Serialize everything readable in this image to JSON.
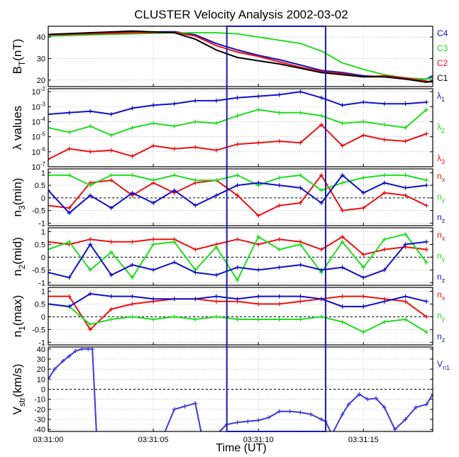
{
  "title": "CLUSTER Velocity Analysis  2002-03-02",
  "xlabel": "Time (UT)",
  "x_ticks": [
    "03:31:00",
    "03:31:05",
    "03:31:10",
    "03:31:15"
  ],
  "x_range": [
    0,
    18.3
  ],
  "highlight_box": {
    "x_start": 8.5,
    "x_end": 13.2,
    "color": "#1a1aa8"
  },
  "chart_data": [
    {
      "type": "line",
      "ylabel": "B",
      "ylabel_sub": "T",
      "ylabel_suffix": "(nT)",
      "ylim": [
        17,
        45
      ],
      "y_ticks": [
        {
          "v": 20,
          "label": "20"
        },
        {
          "v": 30,
          "label": "30"
        },
        {
          "v": 40,
          "label": "40"
        }
      ],
      "series": [
        {
          "name": "C4",
          "color": "#1010c8",
          "markers": false,
          "x": [
            0,
            2,
            4,
            6,
            7,
            8,
            9,
            10,
            11,
            12,
            13,
            14,
            15,
            16,
            17,
            18,
            18.3
          ],
          "values": [
            41,
            41.5,
            42.2,
            42.5,
            41,
            37,
            34,
            31.5,
            29.5,
            27,
            24.5,
            23.5,
            22,
            21.5,
            20.5,
            20.5,
            22
          ]
        },
        {
          "name": "C3",
          "color": "#20dd20",
          "markers": false,
          "x": [
            0,
            2,
            4,
            6,
            7,
            8,
            9,
            10,
            11,
            12,
            13,
            14,
            15,
            16,
            17,
            18,
            18.3
          ],
          "values": [
            40.5,
            41,
            41.5,
            42,
            42,
            42,
            41.5,
            40,
            38.5,
            37,
            33.5,
            28,
            25,
            22.5,
            21,
            20.5,
            21
          ]
        },
        {
          "name": "C2",
          "color": "#ee1010",
          "markers": false,
          "x": [
            0,
            2,
            4,
            6,
            7,
            8,
            9,
            10,
            11,
            12,
            13,
            14,
            15,
            16,
            17,
            18,
            18.3
          ],
          "values": [
            41,
            41.5,
            42,
            42.2,
            40.5,
            36,
            33,
            31,
            28.5,
            26,
            24,
            23,
            21.5,
            22,
            21,
            19.5,
            19
          ]
        },
        {
          "name": "C1",
          "color": "#000000",
          "markers": false,
          "x": [
            0,
            2,
            4,
            6,
            7,
            8,
            9,
            10,
            11,
            12,
            13,
            14,
            15,
            16,
            17,
            18,
            18.3
          ],
          "values": [
            41.2,
            42,
            42.8,
            42,
            39,
            34,
            30.5,
            29,
            27.5,
            25.5,
            23.5,
            22.5,
            21.5,
            21.5,
            20.5,
            19,
            19.5
          ]
        }
      ],
      "legend": [
        {
          "text": "C4",
          "color": "#1010c8"
        },
        {
          "text": "C3",
          "color": "#20dd20"
        },
        {
          "text": "C2",
          "color": "#ee1010"
        },
        {
          "text": "C1",
          "color": "#000000"
        }
      ]
    },
    {
      "type": "line",
      "ylabel": "λ values",
      "log": true,
      "ylim": [
        -7,
        -1.8
      ],
      "y_ticks": [
        {
          "v": -2,
          "label": "10",
          "exp": "-2"
        },
        {
          "v": -3,
          "label": "10",
          "exp": "-3"
        },
        {
          "v": -4,
          "label": "10",
          "exp": "-4"
        },
        {
          "v": -5,
          "label": "10",
          "exp": "-5"
        },
        {
          "v": -6,
          "label": "10",
          "exp": "-6"
        },
        {
          "v": -7,
          "label": "10",
          "exp": "-7"
        }
      ],
      "series": [
        {
          "name": "λ1",
          "color": "#1010c8",
          "markers": true,
          "x": [
            0,
            1,
            2,
            3,
            4,
            5,
            6,
            7,
            8,
            9,
            10,
            11,
            12,
            13,
            14,
            15,
            16,
            17,
            18
          ],
          "values": [
            -3.5,
            -3.4,
            -3.3,
            -3.5,
            -3.1,
            -2.9,
            -2.8,
            -2.6,
            -2.6,
            -2.4,
            -2.3,
            -2.2,
            -2.0,
            -2.4,
            -2.9,
            -2.7,
            -2.8,
            -2.8,
            -2.7
          ]
        },
        {
          "name": "λ2",
          "color": "#20dd20",
          "markers": true,
          "x": [
            0,
            1,
            2,
            3,
            4,
            5,
            6,
            7,
            8,
            9,
            10,
            11,
            12,
            13,
            14,
            15,
            16,
            17,
            18
          ],
          "values": [
            -4.4,
            -4.7,
            -4.3,
            -4.9,
            -4.4,
            -4.1,
            -4.3,
            -4.0,
            -4.1,
            -3.6,
            -3.2,
            -3.4,
            -3.4,
            -3.6,
            -4.1,
            -4.0,
            -4.2,
            -4.4,
            -3.2
          ]
        },
        {
          "name": "λ3",
          "color": "#ee1010",
          "markers": true,
          "x": [
            0,
            1,
            2,
            3,
            4,
            5,
            6,
            7,
            8,
            9,
            10,
            11,
            12,
            13,
            14,
            15,
            16,
            17,
            18
          ],
          "values": [
            -6.5,
            -5.8,
            -6.0,
            -5.9,
            -6.3,
            -5.6,
            -5.8,
            -5.7,
            -5.9,
            -5.5,
            -5.4,
            -5.3,
            -5.4,
            -4.2,
            -5.6,
            -4.9,
            -5.2,
            -5.3,
            -4.8
          ]
        }
      ],
      "legend": [
        {
          "text": "λ",
          "sub": "1",
          "color": "#1010c8"
        },
        {
          "text": "λ",
          "sub": "2",
          "color": "#20dd20"
        },
        {
          "text": "λ",
          "sub": "3",
          "color": "#ee1010"
        }
      ]
    },
    {
      "type": "line",
      "ylabel": "n",
      "ylabel_sub": "3",
      "ylabel_suffix": "(min)",
      "ylim": [
        -1.1,
        1.15
      ],
      "zero_line": true,
      "y_ticks": [
        {
          "v": 1,
          "label": "1"
        },
        {
          "v": 0.5,
          "label": "0.5"
        },
        {
          "v": 0,
          "label": "0"
        },
        {
          "v": -0.5,
          "label": "-0.5"
        },
        {
          "v": -1,
          "label": "-1"
        }
      ],
      "series": [
        {
          "name": "nx",
          "color": "#ee1010",
          "markers": true,
          "x": [
            0,
            1,
            2,
            3,
            4,
            5,
            6,
            7,
            8,
            9,
            10,
            11,
            12,
            13,
            14,
            15,
            16,
            17,
            18
          ],
          "values": [
            -0.3,
            -0.4,
            0.6,
            0.7,
            0.1,
            0.6,
            0.2,
            0.6,
            0.7,
            0.1,
            -0.7,
            -0.3,
            -0.2,
            0.9,
            -0.5,
            -0.4,
            0.2,
            0.1,
            -0.3
          ]
        },
        {
          "name": "ny",
          "color": "#20dd20",
          "markers": true,
          "x": [
            0,
            1,
            2,
            3,
            4,
            5,
            6,
            7,
            8,
            9,
            10,
            11,
            12,
            13,
            14,
            15,
            16,
            17,
            18
          ],
          "values": [
            0.9,
            0.9,
            0.5,
            0.9,
            0.9,
            0.7,
            0.9,
            0.7,
            0.7,
            0.9,
            0.5,
            0.8,
            0.9,
            0.3,
            0.6,
            0.8,
            0.9,
            0.9,
            0.7
          ]
        },
        {
          "name": "nz",
          "color": "#1010c8",
          "markers": true,
          "x": [
            0,
            1,
            2,
            3,
            4,
            5,
            6,
            7,
            8,
            9,
            10,
            11,
            12,
            13,
            14,
            15,
            16,
            17,
            18
          ],
          "values": [
            0.3,
            -0.6,
            0.1,
            -0.4,
            0.2,
            -0.2,
            0.3,
            -0.3,
            0.1,
            0.5,
            0.6,
            0.5,
            0.4,
            -0.2,
            0.9,
            0.2,
            0.6,
            0.4,
            0.5
          ]
        }
      ],
      "legend": [
        {
          "text": "n",
          "sub": "x",
          "color": "#ee1010"
        },
        {
          "text": "n",
          "sub": "y",
          "color": "#20dd20"
        },
        {
          "text": "n",
          "sub": "z",
          "color": "#1010c8"
        }
      ]
    },
    {
      "type": "line",
      "ylabel": "n",
      "ylabel_sub": "2",
      "ylabel_suffix": "(mid)",
      "ylim": [
        -1.1,
        1.15
      ],
      "zero_line": true,
      "y_ticks": [
        {
          "v": 1,
          "label": "1"
        },
        {
          "v": 0.5,
          "label": "0.5"
        },
        {
          "v": 0,
          "label": "0"
        },
        {
          "v": -0.5,
          "label": "-0.5"
        },
        {
          "v": -1,
          "label": "-1"
        }
      ],
      "series": [
        {
          "name": "nx",
          "color": "#ee1010",
          "markers": true,
          "x": [
            0,
            1,
            2,
            3,
            4,
            5,
            6,
            7,
            8,
            9,
            10,
            11,
            12,
            13,
            14,
            15,
            16,
            17,
            18
          ],
          "values": [
            0.6,
            0.5,
            0.7,
            0.6,
            0.6,
            0.7,
            0.7,
            0.3,
            0.5,
            0.7,
            0.5,
            0.7,
            0.6,
            0.3,
            0.8,
            0.1,
            0.3,
            0.4,
            0.3
          ]
        },
        {
          "name": "ny",
          "color": "#20dd20",
          "markers": true,
          "x": [
            0,
            1,
            2,
            3,
            4,
            5,
            6,
            7,
            8,
            9,
            10,
            11,
            12,
            13,
            14,
            15,
            16,
            17,
            18
          ],
          "values": [
            0.3,
            0.6,
            -0.5,
            0.2,
            -0.8,
            0.5,
            0.6,
            -0.5,
            0.4,
            -0.9,
            0.8,
            0.3,
            0.5,
            -0.6,
            0.6,
            -0.4,
            0.7,
            0.9,
            -0.2
          ]
        },
        {
          "name": "nz",
          "color": "#1010c8",
          "markers": true,
          "x": [
            0,
            1,
            2,
            3,
            4,
            5,
            6,
            7,
            8,
            9,
            10,
            11,
            12,
            13,
            14,
            15,
            16,
            17,
            18
          ],
          "values": [
            -0.6,
            -0.8,
            0.5,
            -0.7,
            -0.3,
            -0.5,
            -0.2,
            -0.6,
            -0.7,
            -0.4,
            -0.5,
            -0.4,
            -0.3,
            -0.5,
            -0.4,
            -0.8,
            -0.5,
            0.5,
            0.6
          ]
        }
      ],
      "legend": [
        {
          "text": "n",
          "sub": "x",
          "color": "#ee1010"
        },
        {
          "text": "n",
          "sub": "y",
          "color": "#20dd20"
        },
        {
          "text": "n",
          "sub": "z",
          "color": "#1010c8"
        }
      ]
    },
    {
      "type": "line",
      "ylabel": "n",
      "ylabel_sub": "1",
      "ylabel_suffix": "(max)",
      "ylim": [
        -1.1,
        1.15
      ],
      "zero_line": true,
      "y_ticks": [
        {
          "v": 1,
          "label": "1"
        },
        {
          "v": 0.5,
          "label": "0.5"
        },
        {
          "v": 0,
          "label": "0"
        },
        {
          "v": -0.5,
          "label": "-0.5"
        },
        {
          "v": -1,
          "label": "-1"
        }
      ],
      "series": [
        {
          "name": "nx",
          "color": "#ee1010",
          "markers": true,
          "x": [
            0,
            1,
            2,
            3,
            4,
            5,
            6,
            7,
            8,
            9,
            10,
            11,
            12,
            13,
            14,
            15,
            16,
            17,
            18
          ],
          "values": [
            0.8,
            0.8,
            -0.5,
            0.3,
            0.5,
            0.6,
            0.7,
            0.7,
            0.6,
            0.6,
            0.5,
            0.5,
            0.6,
            0.7,
            0.8,
            0.8,
            0.7,
            0.6,
            0.0
          ]
        },
        {
          "name": "ny",
          "color": "#20dd20",
          "markers": true,
          "x": [
            0,
            1,
            2,
            3,
            4,
            5,
            6,
            7,
            8,
            9,
            10,
            11,
            12,
            13,
            14,
            15,
            16,
            17,
            18
          ],
          "values": [
            0.5,
            0.4,
            -0.3,
            -0.1,
            0.0,
            -0.1,
            0.0,
            -0.1,
            0.0,
            -0.1,
            -0.1,
            -0.1,
            -0.1,
            0.0,
            -0.2,
            -0.6,
            -0.2,
            -0.1,
            -0.6
          ]
        },
        {
          "name": "nz",
          "color": "#1010c8",
          "markers": true,
          "x": [
            0,
            1,
            2,
            3,
            4,
            5,
            6,
            7,
            8,
            9,
            10,
            11,
            12,
            13,
            14,
            15,
            16,
            17,
            18
          ],
          "values": [
            0.5,
            0.4,
            0.9,
            0.8,
            0.8,
            0.7,
            0.7,
            0.7,
            0.8,
            0.7,
            0.8,
            0.8,
            0.8,
            0.7,
            0.4,
            0.4,
            0.6,
            0.8,
            0.6
          ]
        }
      ],
      "legend": [
        {
          "text": "n",
          "sub": "x",
          "color": "#ee1010"
        },
        {
          "text": "n",
          "sub": "y",
          "color": "#20dd20"
        },
        {
          "text": "n",
          "sub": "z",
          "color": "#1010c8"
        }
      ]
    },
    {
      "type": "line",
      "ylabel": "V",
      "ylabel_sub": "str",
      "ylabel_suffix": "(km/s)",
      "ylim": [
        -42,
        42
      ],
      "zero_line": true,
      "y_ticks": [
        {
          "v": 40,
          "label": "40"
        },
        {
          "v": 30,
          "label": "30"
        },
        {
          "v": 20,
          "label": "20"
        },
        {
          "v": 10,
          "label": "10"
        },
        {
          "v": 0,
          "label": "0"
        },
        {
          "v": -10,
          "label": "-10"
        },
        {
          "v": -20,
          "label": "-20"
        },
        {
          "v": -30,
          "label": "-30"
        },
        {
          "v": -40,
          "label": "-40"
        }
      ],
      "series": [
        {
          "name": "Vn1",
          "color": "#3a3ad8",
          "markers": true,
          "x": [
            0,
            0.3,
            0.7,
            1.0,
            1.3,
            1.6,
            1.9,
            2.1,
            2.3,
            5.5,
            6.0,
            6.5,
            7.0,
            7.3,
            8.0,
            8.5,
            9.0,
            9.5,
            10.0,
            10.5,
            11.0,
            11.5,
            12.0,
            12.5,
            13.0,
            13.2,
            13.5,
            14.0,
            14.3,
            14.8,
            15.2,
            15.6,
            16.0,
            16.5,
            17.0,
            17.5,
            18.0,
            18.3
          ],
          "values": [
            10,
            20,
            28,
            33,
            38,
            40,
            40,
            40,
            -45,
            -45,
            -20,
            -17,
            -14,
            -45,
            -45,
            -35,
            -33,
            -32,
            -31,
            -28,
            -22,
            -22,
            -23,
            -25,
            -30,
            -32,
            -45,
            -25,
            -15,
            -5,
            -10,
            -9,
            -18,
            -40,
            -30,
            -18,
            -15,
            -5
          ]
        }
      ],
      "legend": [
        {
          "text": "V",
          "sub": "n1",
          "color": "#1010c8"
        }
      ]
    }
  ]
}
